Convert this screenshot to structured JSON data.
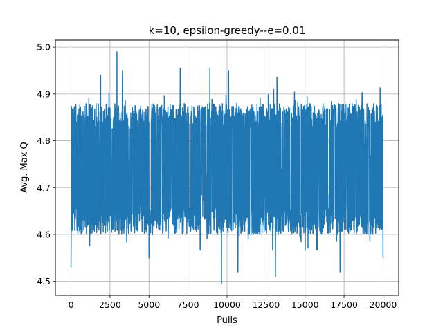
{
  "chart_data": {
    "type": "line",
    "title": "k=10, epsilon-greedy--e=0.01",
    "xlabel": "Pulls",
    "ylabel": "Avg. Max Q",
    "xlim": [
      -1000,
      21000
    ],
    "ylim": [
      4.47,
      5.015
    ],
    "x_ticks": [
      0,
      2500,
      5000,
      7500,
      10000,
      12500,
      15000,
      17500,
      20000
    ],
    "x_tick_labels": [
      "0",
      "2500",
      "5000",
      "7500",
      "10000",
      "12500",
      "15000",
      "17500",
      "20000"
    ],
    "y_ticks": [
      4.5,
      4.6,
      4.7,
      4.8,
      4.9,
      5.0
    ],
    "y_tick_labels": [
      "4.5",
      "4.6",
      "4.7",
      "4.8",
      "4.9",
      "5.0"
    ],
    "grid": true,
    "series": [
      {
        "name": "",
        "color": "#1f77b4",
        "x_start": 0,
        "x_end": 20000,
        "typical_band": [
          4.6,
          4.88
        ],
        "spikes": [
          {
            "x": 0,
            "y": 4.53
          },
          {
            "x": 2950,
            "y": 4.99
          },
          {
            "x": 3300,
            "y": 4.95
          },
          {
            "x": 1900,
            "y": 4.94
          },
          {
            "x": 5000,
            "y": 4.55
          },
          {
            "x": 7000,
            "y": 4.955
          },
          {
            "x": 8900,
            "y": 4.955
          },
          {
            "x": 9650,
            "y": 4.495
          },
          {
            "x": 10100,
            "y": 4.95
          },
          {
            "x": 10700,
            "y": 4.52
          },
          {
            "x": 13100,
            "y": 4.51
          },
          {
            "x": 13200,
            "y": 4.935
          },
          {
            "x": 17250,
            "y": 4.52
          },
          {
            "x": 20000,
            "y": 4.55
          }
        ]
      }
    ]
  }
}
